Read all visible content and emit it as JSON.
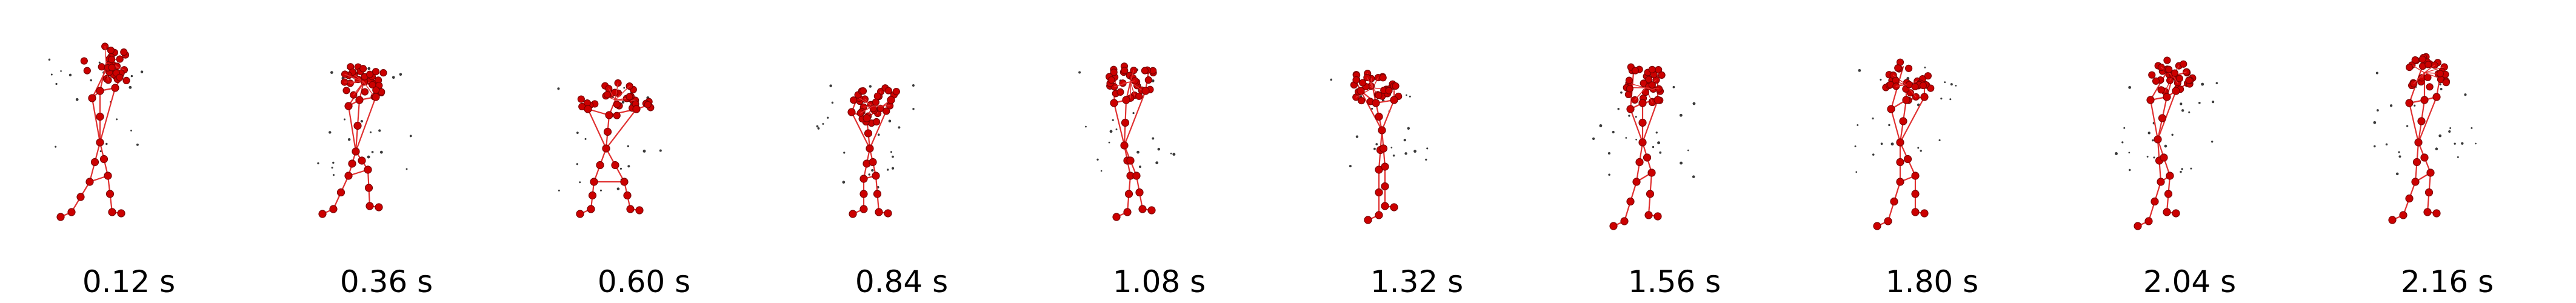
{
  "frames": [
    {
      "time_label": "0.12 s"
    },
    {
      "time_label": "0.36 s"
    },
    {
      "time_label": "0.60 s"
    },
    {
      "time_label": "0.84 s"
    },
    {
      "time_label": "1.08 s"
    },
    {
      "time_label": "1.32 s"
    },
    {
      "time_label": "1.56 s"
    },
    {
      "time_label": "1.80 s"
    },
    {
      "time_label": "2.04 s"
    },
    {
      "time_label": "2.16 s"
    }
  ],
  "colors": {
    "joint_fill": "#cc0000",
    "joint_stroke": "#7a0000",
    "bone": "#e03030",
    "motion_trace": "#3a3a3a",
    "label_text": "#000000",
    "background": "#ffffff"
  }
}
